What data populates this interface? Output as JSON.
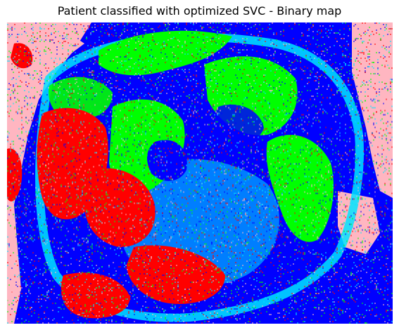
{
  "title": "Patient classified with optimized SVC - Binary map",
  "palette": {
    "background_class": "#0000ff",
    "outside_tissue": "#ffb6c1",
    "boundary_class": "#00e5ff",
    "class_a": "#ff0000",
    "class_b": "#00ff00"
  }
}
